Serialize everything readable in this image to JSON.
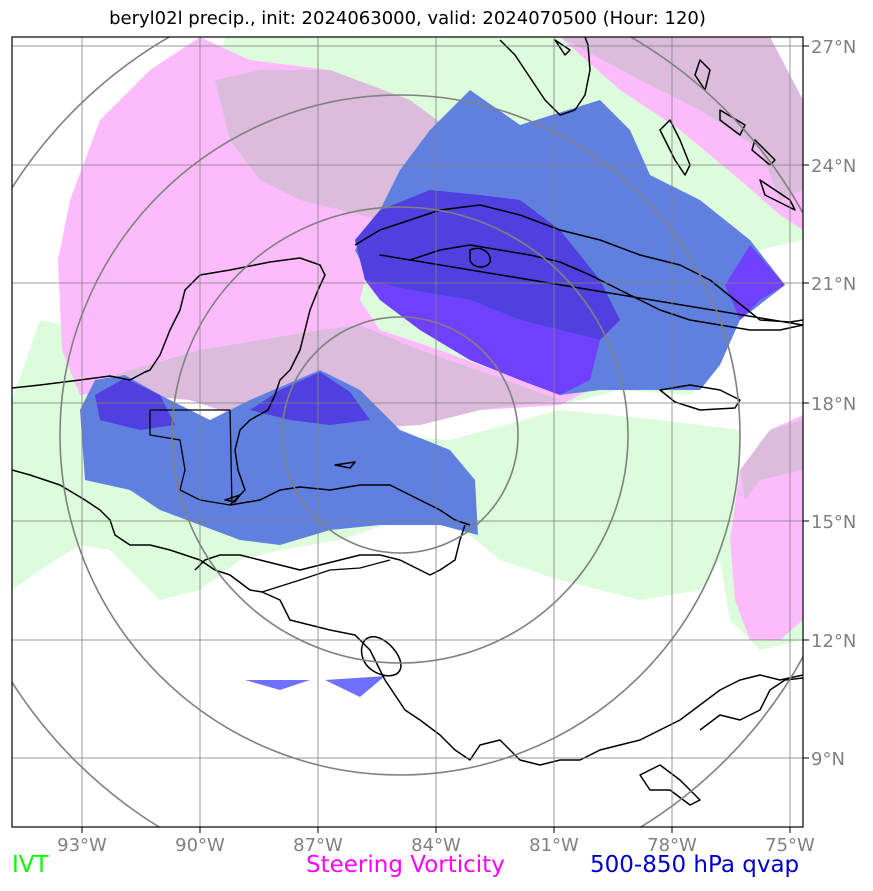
{
  "title": "beryl02l precip., init: 2024063000, valid: 2024070500 (Hour: 120)",
  "lon_labels": [
    "93°W",
    "90°W",
    "87°W",
    "84°W",
    "81°W",
    "78°W",
    "75°W"
  ],
  "lat_labels": [
    "27°N",
    "24°N",
    "21°N",
    "18°N",
    "15°N",
    "12°N",
    "9°N"
  ],
  "legend": {
    "ivt": "IVT",
    "vorticity": "Steering Vorticity",
    "qvap": "500-850 hPa qvap"
  },
  "colors": {
    "ivt": "#00ff00",
    "vorticity": "#ff00ff",
    "qvap": "#0000cc",
    "ivt_fill": "#dcfcdc",
    "vort_fill": "#fcbcfc",
    "overlap_fill": "#dcbcdc",
    "qvap_fill": "#6080e0",
    "qvap_dark": "#5040e0",
    "qvap_violet": "#7040ff"
  }
}
